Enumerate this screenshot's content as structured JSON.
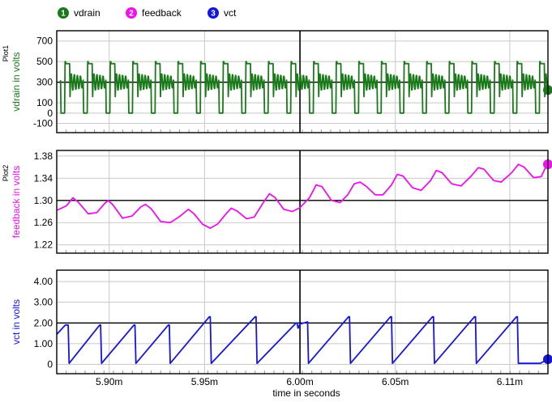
{
  "legend": [
    {
      "num": "1",
      "label": "vdrain",
      "color": "#1a7a1a"
    },
    {
      "num": "2",
      "label": "feedback",
      "color": "#ee11ee"
    },
    {
      "num": "3",
      "label": "vct",
      "color": "#1515dd"
    }
  ],
  "xlabel": "time in seconds",
  "chart_data": [
    {
      "type": "line",
      "series": [
        {
          "name": "vdrain",
          "color": "#1a7a1a"
        }
      ],
      "ylabel": "vdrain in volts",
      "side_label": "Plot1",
      "ylim": [
        -190,
        800
      ],
      "yticks": [
        -100,
        0,
        100,
        300,
        500,
        700
      ],
      "ytick_labels": [
        "-100",
        "0",
        "100",
        "300",
        "500",
        "700"
      ],
      "xlim": [
        5.8725,
        6.13
      ],
      "xticks": [
        5.9,
        5.95,
        6.0,
        6.05,
        6.11
      ],
      "xtick_labels": [
        "5.90m",
        "5.95m",
        "6.00m",
        "6.05m",
        "6.11m"
      ],
      "cursor_x": 6.0,
      "cursor_y": 300,
      "grid": true,
      "waveform": {
        "kind": "switching",
        "period": 0.01185,
        "t0": 5.8745,
        "low": 0,
        "plateau": 500,
        "ring_mean": 300,
        "ring_amp": 85
      }
    },
    {
      "type": "line",
      "series": [
        {
          "name": "feedback",
          "color": "#ee11ee"
        }
      ],
      "ylabel": "feedback in volts",
      "side_label": "Plot2",
      "ylim": [
        1.205,
        1.39
      ],
      "yticks": [
        1.22,
        1.26,
        1.3,
        1.34,
        1.38
      ],
      "ytick_labels": [
        "1.22",
        "1.26",
        "1.30",
        "1.34",
        "1.38"
      ],
      "xlim": [
        5.8725,
        6.13
      ],
      "xticks": [
        5.9,
        5.95,
        6.0,
        6.05,
        6.11
      ],
      "xtick_labels": [
        "5.90m",
        "5.95m",
        "6.00m",
        "6.05m",
        "6.11m"
      ],
      "cursor_x": 6.0,
      "cursor_y": 1.3,
      "grid": true,
      "points": [
        [
          5.8725,
          1.282
        ],
        [
          5.8775,
          1.29
        ],
        [
          5.881,
          1.305
        ],
        [
          5.884,
          1.296
        ],
        [
          5.889,
          1.276
        ],
        [
          5.8935,
          1.278
        ],
        [
          5.8975,
          1.294
        ],
        [
          5.8995,
          1.3
        ],
        [
          5.902,
          1.292
        ],
        [
          5.907,
          1.268
        ],
        [
          5.912,
          1.272
        ],
        [
          5.9165,
          1.288
        ],
        [
          5.919,
          1.293
        ],
        [
          5.922,
          1.285
        ],
        [
          5.927,
          1.262
        ],
        [
          5.932,
          1.26
        ],
        [
          5.9365,
          1.27
        ],
        [
          5.9415,
          1.284
        ],
        [
          5.9445,
          1.276
        ],
        [
          5.949,
          1.257
        ],
        [
          5.953,
          1.25
        ],
        [
          5.957,
          1.258
        ],
        [
          5.9615,
          1.277
        ],
        [
          5.964,
          1.286
        ],
        [
          5.967,
          1.281
        ],
        [
          5.972,
          1.267
        ],
        [
          5.976,
          1.27
        ],
        [
          5.981,
          1.297
        ],
        [
          5.984,
          1.312
        ],
        [
          5.987,
          1.305
        ],
        [
          5.9915,
          1.284
        ],
        [
          5.996,
          1.28
        ],
        [
          6.0,
          1.287
        ],
        [
          6.005,
          1.305
        ],
        [
          6.0085,
          1.328
        ],
        [
          6.0115,
          1.325
        ],
        [
          6.0165,
          1.3
        ],
        [
          6.021,
          1.296
        ],
        [
          6.025,
          1.31
        ],
        [
          6.0285,
          1.33
        ],
        [
          6.0315,
          1.333
        ],
        [
          6.0345,
          1.326
        ],
        [
          6.0395,
          1.31
        ],
        [
          6.0435,
          1.31
        ],
        [
          6.048,
          1.328
        ],
        [
          6.051,
          1.347
        ],
        [
          6.054,
          1.344
        ],
        [
          6.059,
          1.323
        ],
        [
          6.0635,
          1.318
        ],
        [
          6.0685,
          1.336
        ],
        [
          6.0715,
          1.354
        ],
        [
          6.0745,
          1.35
        ],
        [
          6.0795,
          1.33
        ],
        [
          6.0845,
          1.326
        ],
        [
          6.0895,
          1.343
        ],
        [
          6.0935,
          1.359
        ],
        [
          6.0965,
          1.356
        ],
        [
          6.1015,
          1.336
        ],
        [
          6.1055,
          1.333
        ],
        [
          6.111,
          1.35
        ],
        [
          6.1145,
          1.365
        ],
        [
          6.1175,
          1.36
        ],
        [
          6.1225,
          1.341
        ],
        [
          6.1265,
          1.343
        ],
        [
          6.1295,
          1.365
        ]
      ]
    },
    {
      "type": "line",
      "series": [
        {
          "name": "vct",
          "color": "#1515dd"
        }
      ],
      "ylabel": "vct in volts",
      "side_label": "",
      "ylim": [
        -0.45,
        4.55
      ],
      "yticks": [
        0,
        1,
        2,
        3,
        4
      ],
      "ytick_labels": [
        "0",
        "1.00",
        "2.00",
        "3.00",
        "4.00"
      ],
      "xlim": [
        5.8725,
        6.13
      ],
      "xticks": [
        5.9,
        5.95,
        6.0,
        6.05,
        6.11
      ],
      "xtick_labels": [
        "5.90m",
        "5.95m",
        "6.00m",
        "6.05m",
        "6.11m"
      ],
      "cursor_x": 6.0,
      "cursor_y": 2.0,
      "grid": true,
      "points": [
        [
          5.8725,
          1.45
        ],
        [
          5.877,
          1.9
        ],
        [
          5.8785,
          1.9
        ],
        [
          5.879,
          0.05
        ],
        [
          5.895,
          1.9
        ],
        [
          5.8955,
          1.9
        ],
        [
          5.896,
          0.05
        ],
        [
          5.913,
          1.9
        ],
        [
          5.9135,
          1.9
        ],
        [
          5.914,
          0.05
        ],
        [
          5.931,
          1.9
        ],
        [
          5.9315,
          1.9
        ],
        [
          5.932,
          0.05
        ],
        [
          5.9525,
          2.3
        ],
        [
          5.953,
          2.3
        ],
        [
          5.9535,
          0.05
        ],
        [
          5.9765,
          2.3
        ],
        [
          5.977,
          2.3
        ],
        [
          5.9775,
          0.05
        ],
        [
          5.998,
          2.0
        ],
        [
          5.9985,
          2.0
        ],
        [
          5.999,
          1.75
        ],
        [
          6.0,
          1.95
        ],
        [
          6.004,
          2.05
        ],
        [
          6.0045,
          0.05
        ],
        [
          6.0255,
          2.3
        ],
        [
          6.026,
          2.3
        ],
        [
          6.0265,
          0.05
        ],
        [
          6.0475,
          2.3
        ],
        [
          6.048,
          2.3
        ],
        [
          6.0485,
          0.05
        ],
        [
          6.0695,
          2.3
        ],
        [
          6.07,
          2.3
        ],
        [
          6.0705,
          0.05
        ],
        [
          6.0915,
          2.3
        ],
        [
          6.092,
          2.3
        ],
        [
          6.0925,
          0.05
        ],
        [
          6.1135,
          2.3
        ],
        [
          6.114,
          2.3
        ],
        [
          6.1145,
          0.05
        ],
        [
          6.126,
          0.05
        ],
        [
          6.13,
          0.25
        ]
      ]
    }
  ]
}
